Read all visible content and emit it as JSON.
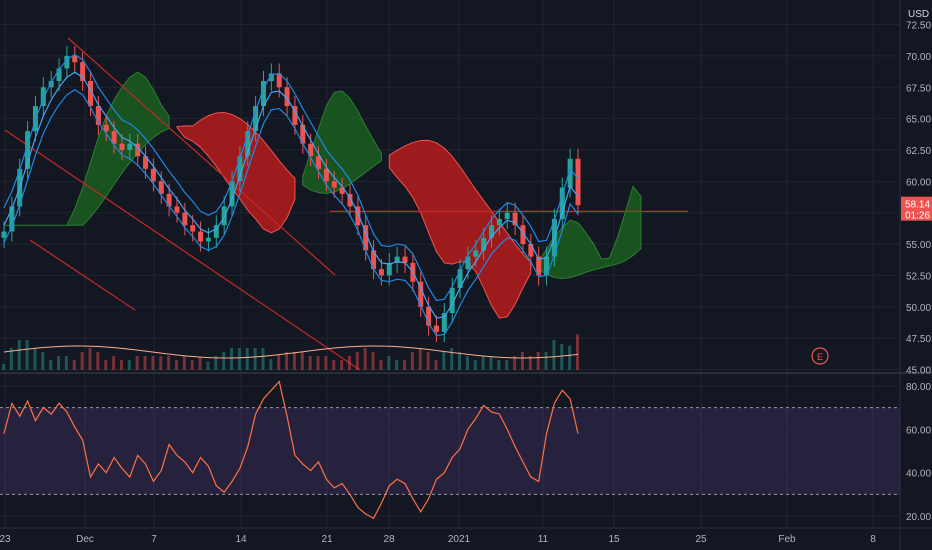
{
  "chart_data": [
    {
      "type": "candlestick",
      "currency_label": "USD",
      "x_labels": [
        "23",
        "Dec",
        "7",
        "14",
        "21",
        "28",
        "2021",
        "11",
        "15",
        "25",
        "Feb",
        "8"
      ],
      "ylim": [
        44.8,
        73.5
      ],
      "y_ticks": [
        "72.50",
        "70.00",
        "67.50",
        "65.00",
        "62.50",
        "60.00",
        "57.50",
        "55.00",
        "52.50",
        "50.00",
        "47.50",
        "45.00"
      ],
      "price_badge": {
        "value": "58.14",
        "countdown": "01:26",
        "color": "#ef5350"
      },
      "price_close_series": [
        56,
        58,
        61,
        64,
        66,
        67.5,
        68,
        69,
        70,
        69.5,
        68,
        66,
        64.5,
        64,
        63,
        62.5,
        63,
        62,
        61,
        60,
        59,
        58,
        57.5,
        56.5,
        56,
        55.2,
        55.5,
        56.5,
        58,
        60,
        62,
        64,
        66,
        68,
        68.6,
        67.5,
        66,
        64.5,
        63,
        62,
        61,
        60,
        59.5,
        59,
        58,
        56.5,
        54.5,
        53,
        52.5,
        53.5,
        54,
        53.5,
        52,
        50,
        48.5,
        48,
        49.5,
        51.5,
        53,
        54,
        54.5,
        55.5,
        56.5,
        57,
        57.5,
        56.5,
        55,
        54,
        52.5,
        54,
        57,
        59.5,
        61.8,
        58.1
      ],
      "ema_fast": [
        56.5,
        57.8,
        59.5,
        61.5,
        63.5,
        65.2,
        66.5,
        67.5,
        68.3,
        68.7,
        68.3,
        67.3,
        66.1,
        65.2,
        64.3,
        63.5,
        63.2,
        62.7,
        62,
        61.2,
        60.3,
        59.4,
        58.6,
        57.7,
        57,
        56.2,
        55.9,
        56.2,
        57.1,
        58.6,
        60.4,
        62.3,
        64.2,
        66,
        67.1,
        67.2,
        66.6,
        65.6,
        64.4,
        63.3,
        62.2,
        61.1,
        60.3,
        59.6,
        58.7,
        57.5,
        55.9,
        54.4,
        53.5,
        53.4,
        53.6,
        53.5,
        52.8,
        51.5,
        50.1,
        49.1,
        49.2,
        50.2,
        51.5,
        52.7,
        53.6,
        54.6,
        55.6,
        56.3,
        56.9,
        56.7,
        55.9,
        55,
        53.8,
        53.9,
        55.5,
        57.5,
        59.6,
        58.8
      ]
    },
    {
      "type": "line",
      "ylim": [
        15,
        85
      ],
      "y_ticks": [
        "80.00",
        "60.00",
        "40.00",
        "20.00"
      ],
      "bands": {
        "upper": 70,
        "lower": 30,
        "mid": 50
      },
      "series": [
        {
          "values": [
            58,
            72,
            66,
            73,
            64,
            70,
            67,
            72,
            68,
            61,
            55,
            38,
            44,
            40,
            47,
            42,
            38,
            48,
            44,
            36,
            41,
            53,
            48,
            45,
            40,
            47,
            43,
            34,
            31,
            36,
            42,
            52,
            67,
            74,
            78,
            82,
            66,
            48,
            44,
            41,
            45,
            37,
            33,
            35,
            30,
            24,
            21,
            19,
            26,
            34,
            37,
            35,
            28,
            22,
            28,
            37,
            40,
            47,
            51,
            60,
            65,
            71,
            68,
            67,
            60,
            52,
            45,
            38,
            36,
            58,
            72,
            78,
            74,
            58
          ]
        }
      ]
    }
  ]
}
